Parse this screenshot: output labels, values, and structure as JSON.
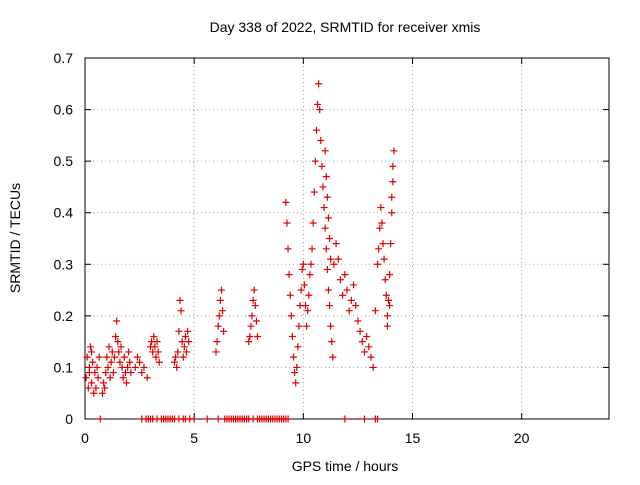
{
  "chart_data": {
    "type": "scatter",
    "title": "Day 338 of 2022, SRMTID for receiver xmis",
    "xlabel": "GPS time / hours",
    "ylabel": "SRMTID / TECUs",
    "xlim": [
      0,
      24
    ],
    "ylim": [
      0,
      0.7
    ],
    "xticks": [
      0,
      5,
      10,
      15,
      20
    ],
    "xtick_labels": [
      "0",
      "5",
      "10",
      "15",
      "20"
    ],
    "yticks": [
      0,
      0.1,
      0.2,
      0.3,
      0.4,
      0.5,
      0.6,
      0.7
    ],
    "ytick_labels": [
      "0",
      "0.1",
      "0.2",
      "0.3",
      "0.4",
      "0.5",
      "0.6",
      "0.7"
    ],
    "grid": true,
    "marker": "plus",
    "series": [
      {
        "name": "SRMTID",
        "color": "#e00000",
        "points": [
          [
            0.05,
            0.08
          ],
          [
            0.1,
            0.12
          ],
          [
            0.15,
            0.06
          ],
          [
            0.2,
            0.1
          ],
          [
            0.25,
            0.14
          ],
          [
            0.3,
            0.07
          ],
          [
            0.35,
            0.11
          ],
          [
            0.4,
            0.05
          ],
          [
            0.45,
            0.09
          ],
          [
            0.5,
            0.06
          ],
          [
            0.55,
            0.1
          ],
          [
            0.6,
            0.08
          ],
          [
            0.65,
            0.12
          ],
          [
            0.2,
            0.09
          ],
          [
            0.3,
            0.13
          ],
          [
            0.8,
            0.05
          ],
          [
            0.85,
            0.07
          ],
          [
            0.9,
            0.06
          ],
          [
            0.95,
            0.09
          ],
          [
            1.0,
            0.12
          ],
          [
            1.05,
            0.1
          ],
          [
            1.1,
            0.14
          ],
          [
            1.15,
            0.08
          ],
          [
            1.2,
            0.11
          ],
          [
            1.25,
            0.13
          ],
          [
            1.3,
            0.09
          ],
          [
            1.35,
            0.12
          ],
          [
            1.4,
            0.16
          ],
          [
            1.45,
            0.19
          ],
          [
            1.5,
            0.15
          ],
          [
            1.55,
            0.13
          ],
          [
            1.6,
            0.11
          ],
          [
            1.65,
            0.14
          ],
          [
            1.7,
            0.1
          ],
          [
            1.75,
            0.08
          ],
          [
            1.8,
            0.12
          ],
          [
            1.85,
            0.09
          ],
          [
            1.9,
            0.07
          ],
          [
            1.95,
            0.1
          ],
          [
            2.0,
            0.13
          ],
          [
            2.05,
            0.11
          ],
          [
            2.1,
            0.09
          ],
          [
            2.3,
            0.1
          ],
          [
            2.4,
            0.12
          ],
          [
            2.5,
            0.11
          ],
          [
            2.6,
            0.09
          ],
          [
            2.7,
            0.1
          ],
          [
            2.85,
            0.08
          ],
          [
            3.0,
            0.14
          ],
          [
            3.05,
            0.15
          ],
          [
            3.1,
            0.13
          ],
          [
            3.15,
            0.16
          ],
          [
            3.2,
            0.14
          ],
          [
            3.25,
            0.12
          ],
          [
            3.3,
            0.15
          ],
          [
            3.35,
            0.13
          ],
          [
            3.4,
            0.11
          ],
          [
            4.1,
            0.11
          ],
          [
            4.15,
            0.12
          ],
          [
            4.2,
            0.1
          ],
          [
            4.25,
            0.13
          ],
          [
            4.3,
            0.17
          ],
          [
            4.35,
            0.23
          ],
          [
            4.4,
            0.21
          ],
          [
            4.45,
            0.15
          ],
          [
            4.5,
            0.12
          ],
          [
            4.55,
            0.14
          ],
          [
            4.6,
            0.16
          ],
          [
            4.65,
            0.13
          ],
          [
            4.7,
            0.17
          ],
          [
            4.75,
            0.15
          ],
          [
            6.0,
            0.13
          ],
          [
            6.05,
            0.15
          ],
          [
            6.1,
            0.18
          ],
          [
            6.15,
            0.2
          ],
          [
            6.2,
            0.23
          ],
          [
            6.25,
            0.25
          ],
          [
            6.3,
            0.21
          ],
          [
            6.35,
            0.17
          ],
          [
            7.5,
            0.15
          ],
          [
            7.55,
            0.16
          ],
          [
            7.6,
            0.18
          ],
          [
            7.65,
            0.2
          ],
          [
            7.7,
            0.23
          ],
          [
            7.75,
            0.25
          ],
          [
            7.8,
            0.22
          ],
          [
            7.85,
            0.19
          ],
          [
            7.9,
            0.16
          ],
          [
            9.2,
            0.42
          ],
          [
            9.25,
            0.38
          ],
          [
            9.3,
            0.33
          ],
          [
            9.35,
            0.28
          ],
          [
            9.4,
            0.24
          ],
          [
            9.45,
            0.2
          ],
          [
            9.5,
            0.16
          ],
          [
            9.55,
            0.12
          ],
          [
            9.6,
            0.09
          ],
          [
            9.65,
            0.07
          ],
          [
            9.7,
            0.1
          ],
          [
            9.75,
            0.14
          ],
          [
            9.8,
            0.18
          ],
          [
            9.85,
            0.22
          ],
          [
            9.9,
            0.25
          ],
          [
            9.95,
            0.29
          ],
          [
            10.0,
            0.3
          ],
          [
            10.05,
            0.26
          ],
          [
            10.1,
            0.22
          ],
          [
            10.15,
            0.18
          ],
          [
            10.2,
            0.21
          ],
          [
            10.25,
            0.24
          ],
          [
            10.3,
            0.28
          ],
          [
            10.35,
            0.3
          ],
          [
            10.4,
            0.33
          ],
          [
            10.45,
            0.38
          ],
          [
            10.5,
            0.44
          ],
          [
            10.55,
            0.5
          ],
          [
            10.6,
            0.56
          ],
          [
            10.65,
            0.61
          ],
          [
            10.7,
            0.65
          ],
          [
            10.75,
            0.6
          ],
          [
            10.8,
            0.54
          ],
          [
            10.85,
            0.49
          ],
          [
            10.9,
            0.45
          ],
          [
            10.95,
            0.41
          ],
          [
            11.0,
            0.37
          ],
          [
            11.05,
            0.33
          ],
          [
            11.1,
            0.29
          ],
          [
            11.15,
            0.25
          ],
          [
            11.2,
            0.22
          ],
          [
            11.25,
            0.18
          ],
          [
            11.3,
            0.15
          ],
          [
            11.35,
            0.12
          ],
          [
            11.0,
            0.52
          ],
          [
            11.05,
            0.47
          ],
          [
            11.1,
            0.43
          ],
          [
            11.15,
            0.39
          ],
          [
            11.2,
            0.35
          ],
          [
            11.25,
            0.31
          ],
          [
            11.4,
            0.3
          ],
          [
            11.5,
            0.34
          ],
          [
            11.6,
            0.31
          ],
          [
            11.7,
            0.27
          ],
          [
            11.8,
            0.24
          ],
          [
            11.9,
            0.28
          ],
          [
            12.0,
            0.25
          ],
          [
            12.1,
            0.21
          ],
          [
            12.2,
            0.23
          ],
          [
            12.3,
            0.26
          ],
          [
            12.4,
            0.22
          ],
          [
            12.5,
            0.19
          ],
          [
            12.6,
            0.17
          ],
          [
            12.7,
            0.15
          ],
          [
            12.8,
            0.13
          ],
          [
            12.9,
            0.16
          ],
          [
            13.0,
            0.14
          ],
          [
            13.1,
            0.12
          ],
          [
            13.2,
            0.1
          ],
          [
            13.3,
            0.21
          ],
          [
            13.4,
            0.3
          ],
          [
            13.45,
            0.33
          ],
          [
            13.5,
            0.37
          ],
          [
            13.55,
            0.41
          ],
          [
            13.6,
            0.38
          ],
          [
            13.65,
            0.34
          ],
          [
            13.7,
            0.31
          ],
          [
            13.75,
            0.27
          ],
          [
            13.8,
            0.24
          ],
          [
            13.85,
            0.2
          ],
          [
            13.9,
            0.23
          ],
          [
            13.95,
            0.28
          ],
          [
            14.0,
            0.34
          ],
          [
            14.05,
            0.4
          ],
          [
            14.1,
            0.46
          ],
          [
            14.15,
            0.52
          ],
          [
            14.1,
            0.49
          ],
          [
            14.05,
            0.43
          ],
          [
            13.95,
            0.22
          ],
          [
            13.85,
            0.18
          ],
          [
            0.7,
            0.0
          ],
          [
            2.6,
            0.0
          ],
          [
            2.8,
            0.0
          ],
          [
            2.9,
            0.0
          ],
          [
            3.0,
            0.0
          ],
          [
            3.1,
            0.0
          ],
          [
            3.3,
            0.0
          ],
          [
            3.5,
            0.0
          ],
          [
            3.6,
            0.0
          ],
          [
            3.7,
            0.0
          ],
          [
            3.8,
            0.0
          ],
          [
            3.9,
            0.0
          ],
          [
            4.0,
            0.0
          ],
          [
            4.1,
            0.0
          ],
          [
            4.3,
            0.0
          ],
          [
            4.5,
            0.0
          ],
          [
            4.6,
            0.0
          ],
          [
            4.8,
            0.0
          ],
          [
            5.0,
            0.0
          ],
          [
            5.6,
            0.0
          ],
          [
            6.1,
            0.0
          ],
          [
            6.4,
            0.0
          ],
          [
            6.5,
            0.0
          ],
          [
            6.6,
            0.0
          ],
          [
            6.7,
            0.0
          ],
          [
            6.8,
            0.0
          ],
          [
            6.9,
            0.0
          ],
          [
            7.0,
            0.0
          ],
          [
            7.1,
            0.0
          ],
          [
            7.2,
            0.0
          ],
          [
            7.3,
            0.0
          ],
          [
            7.4,
            0.0
          ],
          [
            7.5,
            0.0
          ],
          [
            7.7,
            0.0
          ],
          [
            7.9,
            0.0
          ],
          [
            8.0,
            0.0
          ],
          [
            8.1,
            0.0
          ],
          [
            8.2,
            0.0
          ],
          [
            8.3,
            0.0
          ],
          [
            8.4,
            0.0
          ],
          [
            8.5,
            0.0
          ],
          [
            8.6,
            0.0
          ],
          [
            8.7,
            0.0
          ],
          [
            8.8,
            0.0
          ],
          [
            8.9,
            0.0
          ],
          [
            9.0,
            0.0
          ],
          [
            9.1,
            0.0
          ],
          [
            9.2,
            0.0
          ],
          [
            9.3,
            0.0
          ],
          [
            11.9,
            0.0
          ],
          [
            12.8,
            0.0
          ],
          [
            13.3,
            0.0
          ],
          [
            13.4,
            0.0
          ]
        ]
      }
    ]
  }
}
